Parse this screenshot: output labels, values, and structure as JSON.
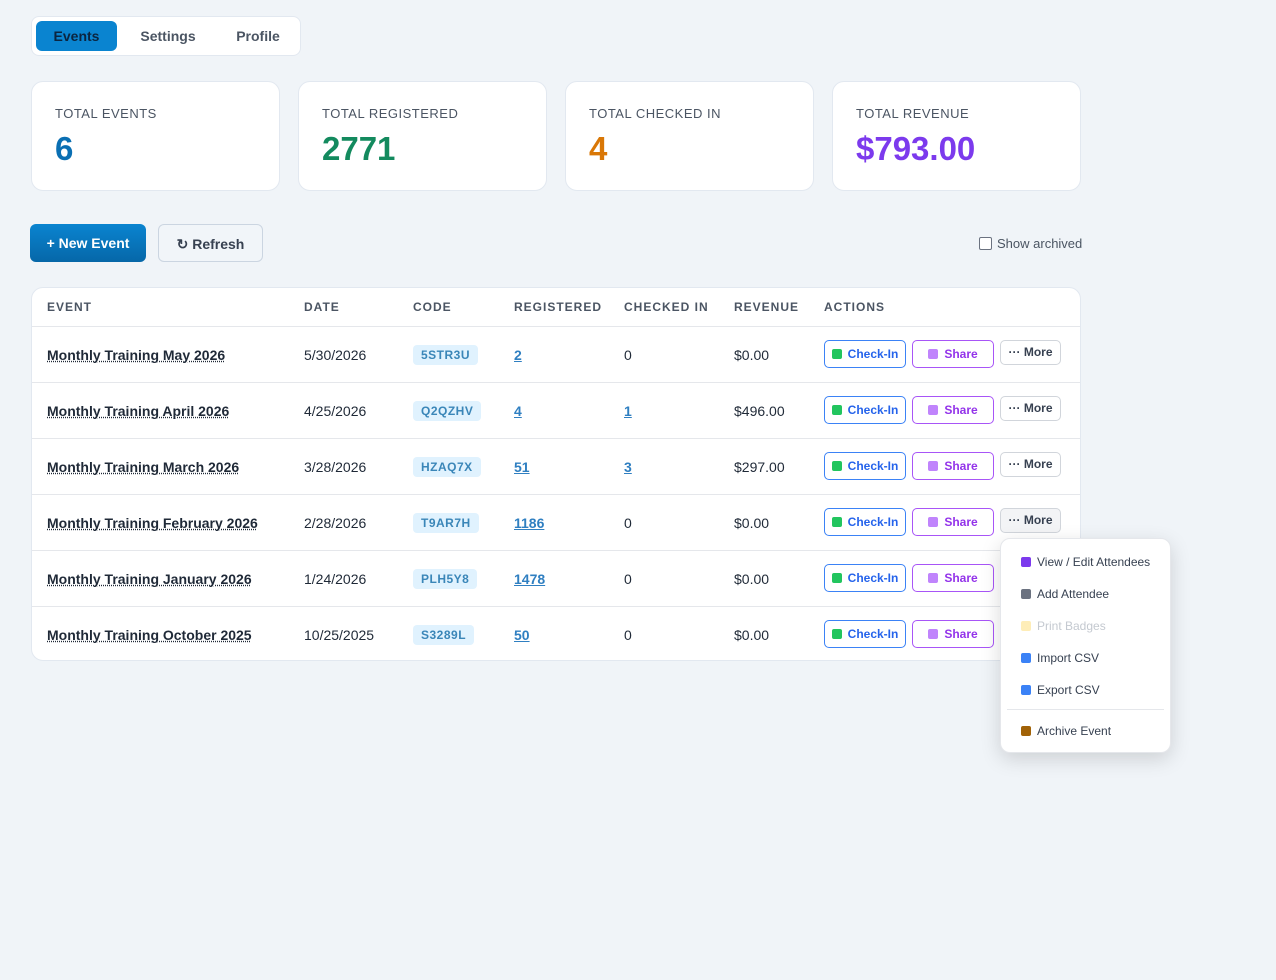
{
  "tabs": [
    "Events",
    "Settings",
    "Profile"
  ],
  "stats": [
    {
      "label": "TOTAL EVENTS",
      "value": "6"
    },
    {
      "label": "TOTAL REGISTERED",
      "value": "2771"
    },
    {
      "label": "TOTAL CHECKED IN",
      "value": "4"
    },
    {
      "label": "TOTAL REVENUE",
      "value": "$793.00"
    }
  ],
  "toolbar": {
    "new_event": "+ New Event",
    "refresh": "↻ Refresh",
    "show_archived": "Show archived"
  },
  "table": {
    "headers": [
      "EVENT",
      "DATE",
      "CODE",
      "REGISTERED",
      "CHECKED IN",
      "REVENUE",
      "ACTIONS"
    ],
    "rows": [
      [
        "Monthly Training May 2026",
        "5/30/2026",
        "5STR3U",
        "2",
        "0",
        "$0.00"
      ],
      [
        "Monthly Training April 2026",
        "4/25/2026",
        "Q2QZHV",
        "4",
        "1",
        "$496.00"
      ],
      [
        "Monthly Training March 2026",
        "3/28/2026",
        "HZAQ7X",
        "51",
        "3",
        "$297.00"
      ],
      [
        "Monthly Training February 2026",
        "2/28/2026",
        "T9AR7H",
        "1186",
        "0",
        "$0.00"
      ],
      [
        "Monthly Training January 2026",
        "1/24/2026",
        "PLH5Y8",
        "1478",
        "0",
        "$0.00"
      ],
      [
        "Monthly Training October 2025",
        "10/25/2025",
        "S3289L",
        "50",
        "0",
        "$0.00"
      ]
    ]
  },
  "actions": {
    "check_in": "Check-In",
    "share": "Share",
    "more": "··· More"
  },
  "menu": {
    "items": [
      "View / Edit Attendees",
      "Add Attendee",
      "Print Badges",
      "Import CSV",
      "Export CSV",
      "Archive Event"
    ]
  }
}
